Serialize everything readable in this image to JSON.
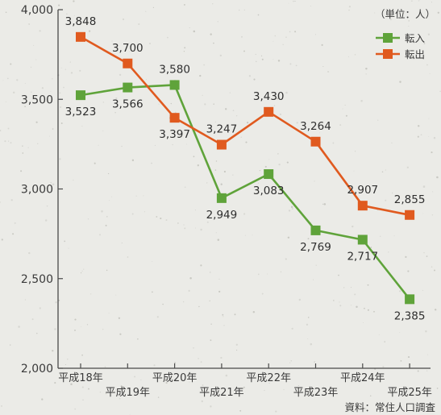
{
  "chart_data": {
    "type": "line",
    "unit_label": "（単位：人）",
    "source": "資料：常住人口調査",
    "categories": [
      "平成18年",
      "平成19年",
      "平成20年",
      "平成21年",
      "平成22年",
      "平成23年",
      "平成24年",
      "平成25年"
    ],
    "ylim": [
      2000,
      4000
    ],
    "yticks": [
      2000,
      2500,
      3000,
      3500,
      4000
    ],
    "ytick_labels": [
      "2,000",
      "2,500",
      "3,000",
      "3,500",
      "4,000"
    ],
    "grid": false,
    "legend_position": "top-right",
    "series": [
      {
        "name": "転入",
        "color": "#5fa33a",
        "values": [
          3523,
          3566,
          3580,
          2949,
          3083,
          2769,
          2717,
          2385
        ],
        "labels": [
          "3,523",
          "3,566",
          "3,580",
          "2,949",
          "3,083",
          "2,769",
          "2,717",
          "2,385"
        ]
      },
      {
        "name": "転出",
        "color": "#e05a1f",
        "values": [
          3848,
          3700,
          3397,
          3247,
          3430,
          3264,
          2907,
          2855
        ],
        "labels": [
          "3,848",
          "3,700",
          "3,397",
          "3,247",
          "3,430",
          "3,264",
          "2,907",
          "2,855"
        ]
      }
    ]
  }
}
